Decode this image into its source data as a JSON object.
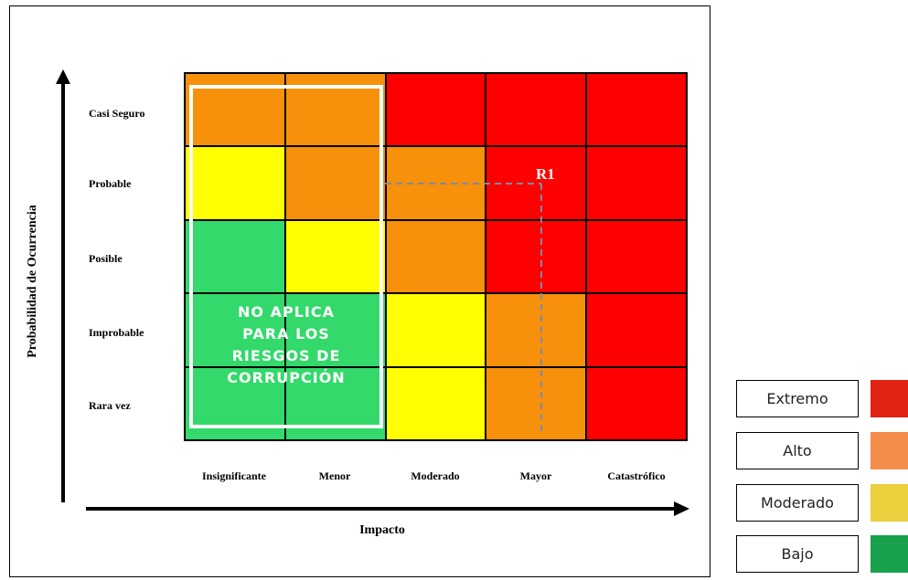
{
  "colors": {
    "extremo": "#ff0000",
    "alto": "#f7900a",
    "moderado": "#ffff00",
    "bajo": "#33d96a",
    "legend_extremo": "#e22414",
    "legend_alto": "#f58d4a",
    "legend_moderado": "#ebcf3c",
    "legend_bajo": "#18a04c"
  },
  "axes": {
    "y_title": "Probabilidad de Ocurrencia",
    "x_title": "Impacto"
  },
  "rows": [
    "Casi Seguro",
    "Probable",
    "Posible",
    "Improbable",
    "Rara vez"
  ],
  "columns": [
    "Insignificante",
    "Menor",
    "Moderado",
    "Mayor",
    "Catastrófico"
  ],
  "matrix": [
    [
      "alto",
      "alto",
      "extremo",
      "extremo",
      "extremo"
    ],
    [
      "moderado",
      "alto",
      "alto",
      "extremo",
      "extremo"
    ],
    [
      "bajo",
      "moderado",
      "alto",
      "extremo",
      "extremo"
    ],
    [
      "bajo",
      "bajo",
      "moderado",
      "alto",
      "extremo"
    ],
    [
      "bajo",
      "bajo",
      "moderado",
      "alto",
      "extremo"
    ]
  ],
  "not_applicable_note": "NO APLICA\nPARA LOS\nRIESGOS DE\nCORRUPCIÓN",
  "risk_marker": {
    "label": "R1",
    "row": "Probable",
    "column": "Mayor"
  },
  "legend": [
    {
      "label": "Extremo",
      "color_key": "legend_extremo"
    },
    {
      "label": "Alto",
      "color_key": "legend_alto"
    },
    {
      "label": "Moderado",
      "color_key": "legend_moderado"
    },
    {
      "label": "Bajo",
      "color_key": "legend_bajo"
    }
  ]
}
